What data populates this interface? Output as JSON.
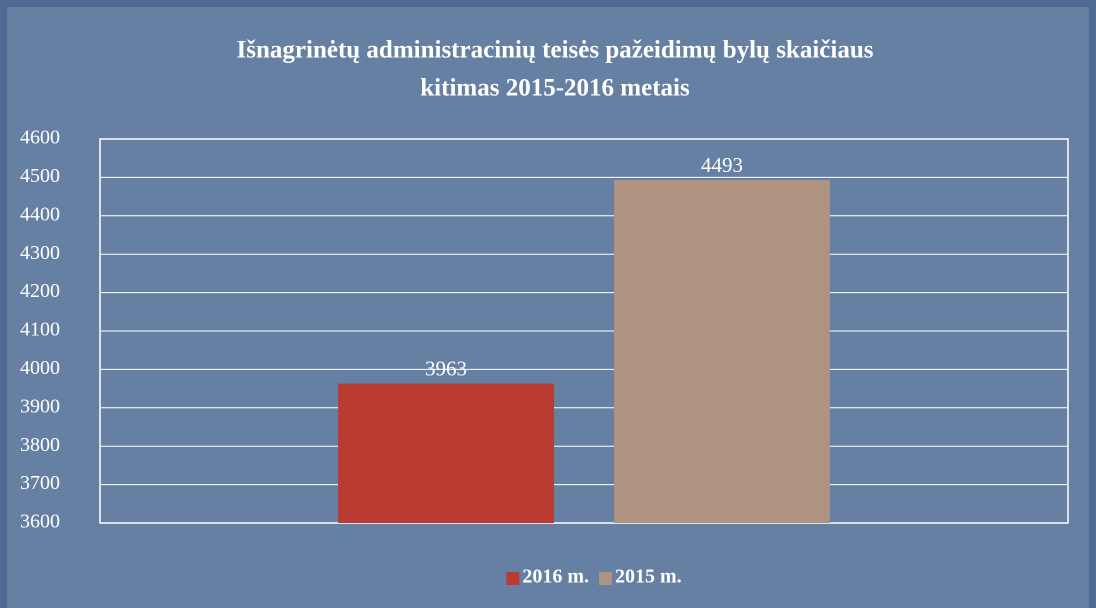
{
  "chart_data": {
    "type": "bar",
    "title": [
      "Išnagrinėtų administracinių teisės pažeidimų bylų skaičiaus",
      "kitimas 2015-2016 metais"
    ],
    "categories": [
      null
    ],
    "series": [
      {
        "name": "2016 m.",
        "color": "#b93b31",
        "values": [
          3963
        ]
      },
      {
        "name": "2015 m.",
        "color": "#ad9380",
        "values": [
          4493
        ]
      }
    ],
    "ylim": [
      3600,
      4600
    ],
    "yticks": [
      3600,
      3700,
      3800,
      3900,
      4000,
      4100,
      4200,
      4300,
      4400,
      4500,
      4600
    ],
    "grid": true,
    "legend": "bottom"
  }
}
